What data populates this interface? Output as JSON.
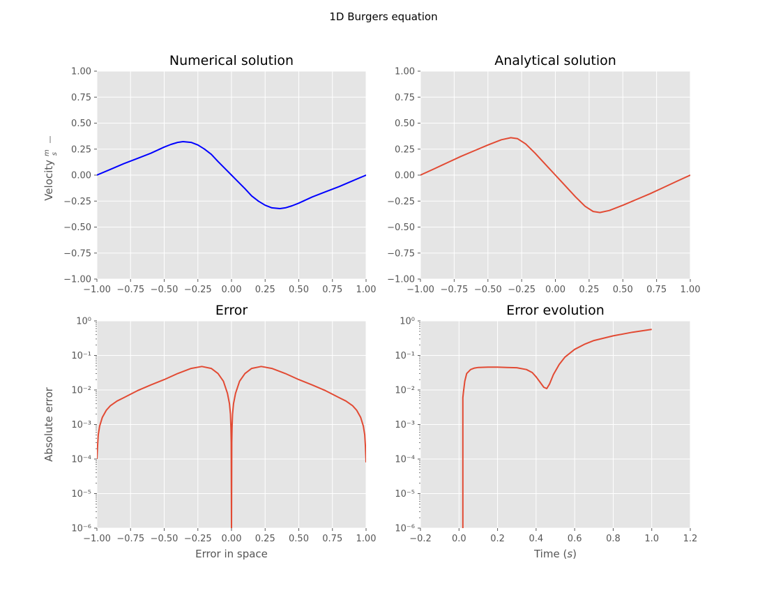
{
  "title": "1D Burgers equation",
  "colors": {
    "axes_bg": "#e5e5e5",
    "grid": "#ffffff",
    "numerical": "#0000ff",
    "analytical": "#e24a33",
    "error": "#e24a33"
  },
  "chart_data": [
    {
      "id": "numerical",
      "type": "line",
      "title": "Numerical solution",
      "xlabel": "",
      "ylabel": "Velocity",
      "ylabel_unit": "m/s",
      "xlim": [
        -1,
        1
      ],
      "ylim": [
        -1,
        1
      ],
      "yscale": "linear",
      "grid": true,
      "xticks": [
        -1,
        -0.75,
        -0.5,
        -0.25,
        0,
        0.25,
        0.5,
        0.75,
        1
      ],
      "yticks": [
        -1,
        -0.75,
        -0.5,
        -0.25,
        0,
        0.25,
        0.5,
        0.75,
        1
      ],
      "xtick_labels": [
        "−1.00",
        "−0.75",
        "−0.50",
        "−0.25",
        "0.00",
        "0.25",
        "0.50",
        "0.75",
        "1.00"
      ],
      "ytick_labels": [
        "−1.00",
        "−0.75",
        "−0.50",
        "−0.25",
        "0.00",
        "0.25",
        "0.50",
        "0.75",
        "1.00"
      ],
      "series": [
        {
          "color": "#0000ff",
          "x": [
            -1,
            -0.9,
            -0.8,
            -0.7,
            -0.6,
            -0.5,
            -0.45,
            -0.4,
            -0.36,
            -0.3,
            -0.25,
            -0.2,
            -0.15,
            -0.1,
            -0.05,
            0,
            0.05,
            0.1,
            0.15,
            0.2,
            0.25,
            0.3,
            0.36,
            0.4,
            0.45,
            0.5,
            0.6,
            0.7,
            0.8,
            0.9,
            1
          ],
          "y": [
            0,
            0.055,
            0.11,
            0.16,
            0.21,
            0.27,
            0.295,
            0.315,
            0.322,
            0.315,
            0.29,
            0.25,
            0.2,
            0.13,
            0.065,
            0,
            -0.065,
            -0.13,
            -0.2,
            -0.25,
            -0.29,
            -0.315,
            -0.322,
            -0.315,
            -0.295,
            -0.27,
            -0.21,
            -0.16,
            -0.11,
            -0.055,
            0
          ]
        }
      ]
    },
    {
      "id": "analytical",
      "type": "line",
      "title": "Analytical solution",
      "xlabel": "",
      "ylabel": "",
      "xlim": [
        -1,
        1
      ],
      "ylim": [
        -1,
        1
      ],
      "yscale": "linear",
      "grid": true,
      "xticks": [
        -1,
        -0.75,
        -0.5,
        -0.25,
        0,
        0.25,
        0.5,
        0.75,
        1
      ],
      "yticks": [
        -1,
        -0.75,
        -0.5,
        -0.25,
        0,
        0.25,
        0.5,
        0.75,
        1
      ],
      "xtick_labels": [
        "−1.00",
        "−0.75",
        "−0.50",
        "−0.25",
        "0.00",
        "0.25",
        "0.50",
        "0.75",
        "1.00"
      ],
      "ytick_labels": [
        "−1.00",
        "−0.75",
        "−0.50",
        "−0.25",
        "0.00",
        "0.25",
        "0.50",
        "0.75",
        "1.00"
      ],
      "series": [
        {
          "color": "#e24a33",
          "x": [
            -1,
            -0.9,
            -0.8,
            -0.7,
            -0.6,
            -0.5,
            -0.45,
            -0.4,
            -0.33,
            -0.28,
            -0.22,
            -0.15,
            -0.1,
            -0.05,
            0,
            0.05,
            0.1,
            0.15,
            0.22,
            0.28,
            0.33,
            0.4,
            0.45,
            0.5,
            0.6,
            0.7,
            0.8,
            0.9,
            1
          ],
          "y": [
            0,
            0.06,
            0.12,
            0.18,
            0.235,
            0.29,
            0.315,
            0.34,
            0.36,
            0.35,
            0.3,
            0.21,
            0.14,
            0.07,
            0,
            -0.07,
            -0.14,
            -0.21,
            -0.3,
            -0.35,
            -0.36,
            -0.34,
            -0.315,
            -0.29,
            -0.235,
            -0.18,
            -0.12,
            -0.06,
            0
          ]
        }
      ]
    },
    {
      "id": "error",
      "type": "line",
      "title": "Error",
      "xlabel": "Error in space",
      "ylabel": "Absolute error",
      "xlim": [
        -1,
        1
      ],
      "ylim": [
        1e-06,
        1
      ],
      "yscale": "log",
      "grid": true,
      "xticks": [
        -1,
        -0.75,
        -0.5,
        -0.25,
        0,
        0.25,
        0.5,
        0.75,
        1
      ],
      "yticks": [
        -6,
        -5,
        -4,
        -3,
        -2,
        -1,
        0
      ],
      "xtick_labels": [
        "−1.00",
        "−0.75",
        "−0.50",
        "−0.25",
        "0.00",
        "0.25",
        "0.50",
        "0.75",
        "1.00"
      ],
      "ytick_labels": [
        "10⁻⁶",
        "10⁻⁵",
        "10⁻⁴",
        "10⁻³",
        "10⁻²",
        "10⁻¹",
        "10⁰"
      ],
      "series": [
        {
          "color": "#e24a33",
          "x": [
            -1,
            -0.995,
            -0.99,
            -0.98,
            -0.96,
            -0.93,
            -0.9,
            -0.85,
            -0.8,
            -0.7,
            -0.6,
            -0.5,
            -0.4,
            -0.3,
            -0.22,
            -0.15,
            -0.1,
            -0.06,
            -0.03,
            -0.015,
            -0.008,
            -0.004,
            -0.002,
            0,
            0.002,
            0.004,
            0.008,
            0.015,
            0.03,
            0.06,
            0.1,
            0.15,
            0.22,
            0.3,
            0.4,
            0.5,
            0.6,
            0.7,
            0.8,
            0.85,
            0.9,
            0.93,
            0.96,
            0.98,
            0.99,
            0.995,
            1
          ],
          "y": [
            0.0001,
            0.00025,
            0.0005,
            0.0009,
            0.0016,
            0.0026,
            0.0035,
            0.0048,
            0.006,
            0.0095,
            0.014,
            0.02,
            0.03,
            0.042,
            0.048,
            0.042,
            0.03,
            0.018,
            0.008,
            0.004,
            0.002,
            0.0008,
            0.0003,
            1e-06,
            0.0003,
            0.0008,
            0.002,
            0.004,
            0.008,
            0.018,
            0.03,
            0.042,
            0.048,
            0.042,
            0.03,
            0.02,
            0.014,
            0.0095,
            0.006,
            0.0048,
            0.0035,
            0.0026,
            0.0016,
            0.0009,
            0.0005,
            0.00025,
            8e-05
          ]
        }
      ]
    },
    {
      "id": "error_evolution",
      "type": "line",
      "title": "Error evolution",
      "xlabel": "Time (s)",
      "ylabel": "",
      "xlim": [
        -0.2,
        1.2
      ],
      "ylim": [
        1e-06,
        1
      ],
      "yscale": "log",
      "grid": true,
      "xticks": [
        -0.2,
        0,
        0.2,
        0.4,
        0.6,
        0.8,
        1.0,
        1.2
      ],
      "yticks": [
        -6,
        -5,
        -4,
        -3,
        -2,
        -1,
        0
      ],
      "xtick_labels": [
        "−0.2",
        "0.0",
        "0.2",
        "0.4",
        "0.6",
        "0.8",
        "1.0",
        "1.2"
      ],
      "ytick_labels": [
        "10⁻⁶",
        "10⁻⁵",
        "10⁻⁴",
        "10⁻³",
        "10⁻²",
        "10⁻¹",
        "10⁰"
      ],
      "series": [
        {
          "color": "#e24a33",
          "x": [
            0.02,
            0.02,
            0.023,
            0.03,
            0.04,
            0.06,
            0.08,
            0.1,
            0.15,
            0.2,
            0.25,
            0.3,
            0.35,
            0.38,
            0.4,
            0.42,
            0.44,
            0.455,
            0.47,
            0.49,
            0.52,
            0.55,
            0.6,
            0.65,
            0.7,
            0.8,
            0.9,
            1.0
          ],
          "y": [
            1e-06,
            0.006,
            0.0085,
            0.018,
            0.03,
            0.039,
            0.043,
            0.045,
            0.046,
            0.046,
            0.045,
            0.044,
            0.039,
            0.032,
            0.024,
            0.017,
            0.012,
            0.011,
            0.015,
            0.028,
            0.055,
            0.09,
            0.15,
            0.21,
            0.27,
            0.37,
            0.47,
            0.57
          ]
        }
      ]
    }
  ]
}
